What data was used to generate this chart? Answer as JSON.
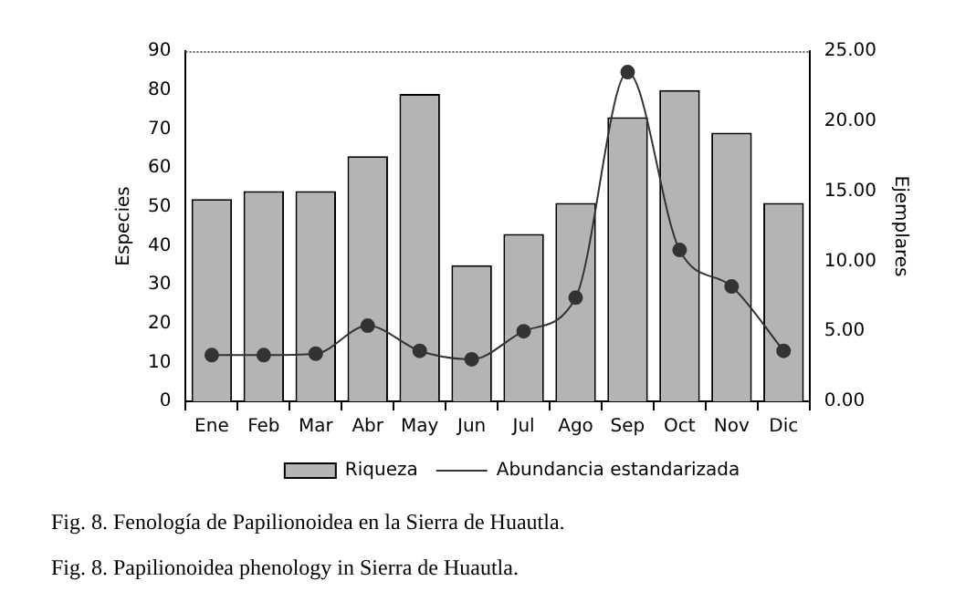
{
  "chart_data": {
    "type": "bar",
    "ylabel": "Especies",
    "y2label": "Ejemplares",
    "categories": [
      "Ene",
      "Feb",
      "Mar",
      "Abr",
      "May",
      "Jun",
      "Jul",
      "Ago",
      "Sep",
      "Oct",
      "Nov",
      "Dic"
    ],
    "series": [
      {
        "name": "Riqueza",
        "color": "#b4b4b4",
        "values": [
          52,
          54,
          54,
          63,
          79,
          35,
          43,
          51,
          73,
          80,
          69,
          51
        ]
      },
      {
        "name": "Abundancia estandarizada",
        "type": "line",
        "axis": "y2",
        "color": "#333333",
        "marker": "circle",
        "values": [
          3.3,
          3.3,
          3.4,
          5.4,
          3.6,
          3.0,
          5.0,
          7.4,
          23.5,
          10.8,
          8.2,
          3.6
        ]
      }
    ],
    "ylim": [
      0,
      90
    ],
    "yticks": [
      0,
      10,
      20,
      30,
      40,
      50,
      60,
      70,
      80,
      90
    ],
    "y2lim": [
      0,
      25
    ],
    "y2ticks": [
      {
        "value": 0,
        "label": "0.00"
      },
      {
        "value": 5,
        "label": "5.00"
      },
      {
        "value": 10,
        "label": "10.00"
      },
      {
        "value": 15,
        "label": "15.00"
      },
      {
        "value": 20,
        "label": "20.00"
      },
      {
        "value": 25,
        "label": "25.00"
      }
    ],
    "grid": false,
    "legend": "bottom",
    "annotations": [
      "Fig. 8. Fenología de Papilionoidea en la Sierra de Huautla.",
      "Fig. 8. Papilionoidea phenology in Sierra de Huautla."
    ]
  }
}
